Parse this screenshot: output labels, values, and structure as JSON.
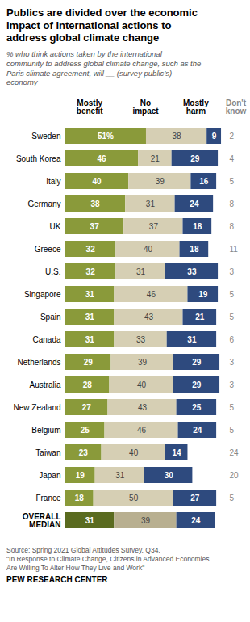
{
  "chart_data": {
    "type": "bar",
    "orientation": "horizontal",
    "stacked": true,
    "data_labels": true,
    "tick_labels": "y",
    "title": "Publics are divided over the economic\nimpact of international actions to\naddress global climate change",
    "subtitle": "% who think actions taken by the international\ncommunity to address global climate change, such as the\nParis climate agreement, will __ (survey public’s)\neconomy",
    "categories": [
      "Sweden",
      "South Korea",
      "Italy",
      "Germany",
      "UK",
      "Greece",
      "U.S.",
      "Singapore",
      "Spain",
      "Canada",
      "Netherlands",
      "Australia",
      "New Zealand",
      "Belgium",
      "Taiwan",
      "Japan",
      "France",
      "OVERALL\nMEDIAN"
    ],
    "xlim": [
      0,
      100
    ],
    "series": [
      {
        "name": "Mostly\nbenefit",
        "values": [
          51,
          46,
          40,
          38,
          37,
          32,
          32,
          31,
          31,
          31,
          29,
          28,
          27,
          25,
          23,
          19,
          18,
          31
        ],
        "value_labels": [
          "51%",
          "46",
          "40",
          "38",
          "37",
          "32",
          "32",
          "31",
          "31",
          "31",
          "29",
          "28",
          "27",
          "25",
          "23",
          "19",
          "18",
          "31"
        ],
        "colors": [
          "#8a9a3a",
          "#8a9a3a",
          "#8a9a3a",
          "#8a9a3a",
          "#8a9a3a",
          "#8a9a3a",
          "#8a9a3a",
          "#8a9a3a",
          "#8a9a3a",
          "#8a9a3a",
          "#8a9a3a",
          "#8a9a3a",
          "#8a9a3a",
          "#8a9a3a",
          "#8a9a3a",
          "#8a9a3a",
          "#8a9a3a",
          "#5a6b20"
        ]
      },
      {
        "name": "No\nimpact",
        "values": [
          38,
          21,
          39,
          31,
          37,
          40,
          31,
          46,
          43,
          33,
          39,
          40,
          43,
          46,
          40,
          31,
          50,
          39
        ],
        "colors": [
          "#d6cfb4",
          "#d6cfb4",
          "#d6cfb4",
          "#d6cfb4",
          "#d6cfb4",
          "#d6cfb4",
          "#d6cfb4",
          "#d6cfb4",
          "#d6cfb4",
          "#d6cfb4",
          "#d6cfb4",
          "#d6cfb4",
          "#d6cfb4",
          "#d6cfb4",
          "#d6cfb4",
          "#d6cfb4",
          "#d6cfb4",
          "#b8af90"
        ]
      },
      {
        "name": "Mostly\nharm",
        "values": [
          9,
          29,
          16,
          24,
          18,
          18,
          33,
          19,
          21,
          31,
          29,
          29,
          25,
          24,
          14,
          30,
          27,
          24
        ],
        "color": "#2e4a7e"
      },
      {
        "name": "Don't\nknow",
        "type": "text",
        "color": "#888888",
        "values": [
          2,
          4,
          5,
          8,
          8,
          11,
          3,
          5,
          5,
          6,
          3,
          3,
          5,
          5,
          24,
          20,
          5,
          null
        ]
      }
    ],
    "source": "Source: Spring 2021 Global Attitudes Survey. Q34.\n\"In Response to Climate Change, Citizens in Advanced Economies\nAre Willing To Alter How They Live and Work\"",
    "credit": "PEW RESEARCH CENTER"
  }
}
